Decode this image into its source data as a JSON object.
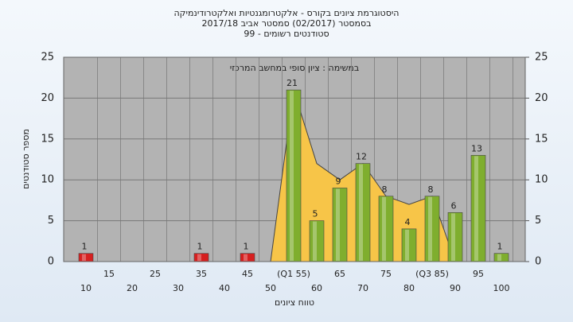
{
  "chart_data": {
    "type": "bar",
    "title": "היסטוגרמת ציונים בקורס - אלקטרומגנטיות ואלקטרודינמיקה",
    "subtitle": "בסמסטר  (02/2017)  סמסטר אביב 2017/18",
    "subtitle2": "סטודנטים רשומים - 99",
    "annotation": "במשימה : ציון סופי במחשב המרכזי",
    "x_label": "טווח ציונים",
    "y_label": "מספר סטודנטים",
    "categories": [
      "10",
      "15",
      "20",
      "25",
      "30",
      "35",
      "40",
      "45",
      "50",
      "(Q1 55)",
      "60",
      "65",
      "70",
      "75",
      "80",
      "(Q3 85)",
      "90",
      "95",
      "100"
    ],
    "values": [
      1,
      null,
      null,
      null,
      null,
      1,
      null,
      1,
      null,
      21,
      5,
      9,
      12,
      8,
      4,
      8,
      6,
      13,
      1
    ],
    "colors": [
      "#d62020",
      null,
      null,
      null,
      null,
      "#d62020",
      null,
      "#d62020",
      null,
      "#7fae2e",
      "#7fae2e",
      "#7fae2e",
      "#7fae2e",
      "#7fae2e",
      "#7fae2e",
      "#7fae2e",
      "#7fae2e",
      "#7fae2e",
      "#7fae2e"
    ],
    "area": {
      "color": "#f7c548",
      "values": [
        null,
        null,
        null,
        null,
        null,
        null,
        null,
        null,
        0,
        21,
        12,
        10,
        12,
        8,
        7,
        8,
        0,
        null,
        null
      ]
    },
    "ylim": [
      0,
      25
    ],
    "yticks": [
      0,
      5,
      10,
      15,
      20,
      25
    ],
    "y2lim": [
      0,
      25
    ],
    "y2ticks": [
      0,
      5,
      10,
      15,
      20,
      25
    ],
    "grid": true
  }
}
